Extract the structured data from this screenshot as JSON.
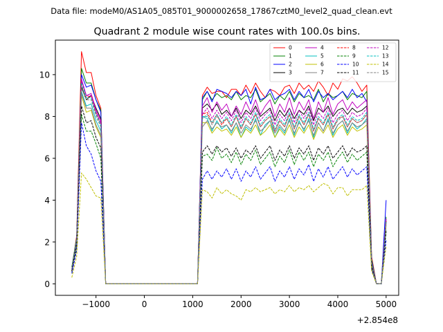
{
  "chart_data": {
    "type": "line",
    "suptitle": "Data file: modeM0/AS1A05_085T01_9000002658_17867cztM0_level2_quad_clean.evt",
    "title": "Quadrant 2 module wise count rates with 100.0s bins.",
    "xlabel": "",
    "ylabel": "",
    "x_offset_label": "+2.854e8",
    "xlim": [
      -1840,
      5260
    ],
    "ylim": [
      -0.55,
      11.65
    ],
    "xticks": [
      -1000,
      0,
      1000,
      2000,
      3000,
      4000,
      5000
    ],
    "xtick_labels": [
      "−1000",
      "0",
      "1000",
      "2000",
      "3000",
      "4000",
      "5000"
    ],
    "yticks": [
      0,
      2,
      4,
      6,
      8,
      10
    ],
    "ytick_labels": [
      "0",
      "2",
      "4",
      "6",
      "8",
      "10"
    ],
    "legend_position": "top-right",
    "x": [
      -1500,
      -1400,
      -1300,
      -1200,
      -1100,
      -1000,
      -900,
      -800,
      1100,
      1200,
      1300,
      1400,
      1500,
      1600,
      1700,
      1800,
      1900,
      2000,
      2100,
      2200,
      2300,
      2400,
      2500,
      2600,
      2700,
      2800,
      2900,
      3000,
      3100,
      3200,
      3300,
      3400,
      3500,
      3600,
      3700,
      3800,
      3900,
      4000,
      4100,
      4200,
      4300,
      4400,
      4500,
      4600,
      4700,
      4800,
      4900,
      5000
    ],
    "series": [
      {
        "name": "0",
        "color": "#ff0000",
        "dash": "solid",
        "values": [
          0.7,
          2.3,
          11.1,
          10.1,
          10.1,
          9.0,
          8.4,
          0.0,
          0.0,
          9.0,
          9.4,
          9.1,
          9.2,
          9.2,
          8.9,
          9.3,
          9.3,
          9.0,
          9.5,
          9.1,
          9.6,
          9.2,
          8.9,
          9.3,
          9.2,
          9.0,
          9.4,
          9.5,
          9.1,
          9.6,
          9.3,
          9.5,
          9.2,
          9.7,
          9.4,
          9.0,
          9.6,
          9.3,
          9.8,
          9.7,
          9.9,
          9.6,
          9.2,
          9.5,
          1.3,
          0.0,
          0.0,
          3.0
        ]
      },
      {
        "name": "1",
        "color": "#008000",
        "dash": "solid",
        "values": [
          0.8,
          2.2,
          10.3,
          9.6,
          9.6,
          8.8,
          8.3,
          0.0,
          0.0,
          8.8,
          9.2,
          8.8,
          9.1,
          8.9,
          9.0,
          8.8,
          9.2,
          8.8,
          9.0,
          8.9,
          9.3,
          8.7,
          8.9,
          9.1,
          8.6,
          9.0,
          8.8,
          9.2,
          8.7,
          9.1,
          8.9,
          9.0,
          8.8,
          9.3,
          8.7,
          9.1,
          8.9,
          9.0,
          9.2,
          8.8,
          9.1,
          9.0,
          8.9,
          9.2,
          1.2,
          0.0,
          0.0,
          3.2
        ]
      },
      {
        "name": "2",
        "color": "#0000ff",
        "dash": "solid",
        "values": [
          0.7,
          2.1,
          10.0,
          9.4,
          9.5,
          8.8,
          8.2,
          0.0,
          0.0,
          8.9,
          9.2,
          8.7,
          9.3,
          9.2,
          9.1,
          8.9,
          9.2,
          9.0,
          9.3,
          8.6,
          9.4,
          8.8,
          8.9,
          9.3,
          8.8,
          9.0,
          9.1,
          9.3,
          8.8,
          9.2,
          8.9,
          9.3,
          8.7,
          9.2,
          8.9,
          9.1,
          8.8,
          9.0,
          9.2,
          8.9,
          9.3,
          8.9,
          9.1,
          8.7,
          1.1,
          0.0,
          0.0,
          4.0
        ]
      },
      {
        "name": "3",
        "color": "#000000",
        "dash": "solid",
        "values": [
          0.6,
          2.0,
          9.4,
          8.8,
          9.0,
          8.4,
          7.9,
          0.0,
          0.0,
          8.4,
          8.6,
          8.3,
          8.6,
          8.1,
          8.3,
          8.0,
          8.4,
          7.9,
          8.3,
          8.1,
          8.5,
          8.0,
          8.2,
          8.4,
          7.8,
          8.3,
          8.0,
          8.4,
          7.9,
          8.3,
          8.1,
          8.5,
          7.8,
          8.4,
          8.2,
          8.5,
          8.0,
          8.3,
          8.4,
          8.1,
          8.4,
          8.2,
          8.3,
          8.5,
          1.0,
          0.0,
          0.0,
          3.0
        ]
      },
      {
        "name": "4",
        "color": "#bf00bf",
        "dash": "solid",
        "values": [
          0.6,
          2.0,
          9.8,
          9.0,
          9.1,
          8.3,
          7.8,
          0.0,
          0.0,
          8.5,
          8.9,
          8.2,
          8.7,
          8.3,
          8.6,
          8.0,
          8.5,
          8.1,
          8.7,
          8.2,
          8.8,
          8.1,
          8.5,
          8.8,
          8.0,
          8.6,
          8.2,
          8.9,
          8.1,
          8.7,
          8.3,
          8.8,
          7.9,
          8.7,
          8.2,
          8.9,
          8.1,
          8.6,
          8.8,
          8.3,
          8.7,
          8.4,
          8.6,
          8.8,
          1.0,
          0.0,
          0.0,
          3.1
        ]
      },
      {
        "name": "5",
        "color": "#00bfbf",
        "dash": "solid",
        "values": [
          0.6,
          1.9,
          9.2,
          8.5,
          8.6,
          7.8,
          7.3,
          0.0,
          0.0,
          8.0,
          7.9,
          7.3,
          7.8,
          7.4,
          7.6,
          7.2,
          7.7,
          7.0,
          7.5,
          7.3,
          7.9,
          7.1,
          7.6,
          7.8,
          7.0,
          7.5,
          7.2,
          7.9,
          7.1,
          7.8,
          7.3,
          7.9,
          7.0,
          7.7,
          7.3,
          7.9,
          7.1,
          7.6,
          7.8,
          7.2,
          7.7,
          7.4,
          7.6,
          7.9,
          0.9,
          0.0,
          0.0,
          2.9
        ]
      },
      {
        "name": "6",
        "color": "#bfbf00",
        "dash": "solid",
        "values": [
          0.6,
          1.9,
          9.0,
          8.2,
          8.3,
          7.5,
          7.0,
          0.0,
          0.0,
          7.7,
          7.7,
          7.2,
          7.5,
          7.3,
          7.4,
          7.1,
          7.5,
          7.0,
          7.4,
          7.2,
          7.6,
          7.1,
          7.3,
          7.6,
          7.0,
          7.4,
          7.1,
          7.6,
          7.0,
          7.5,
          7.2,
          7.6,
          6.9,
          7.5,
          7.2,
          7.6,
          7.0,
          7.4,
          7.6,
          7.1,
          7.5,
          7.3,
          7.4,
          7.6,
          0.9,
          0.0,
          0.0,
          2.8
        ]
      },
      {
        "name": "7",
        "color": "#808080",
        "dash": "solid",
        "values": [
          0.6,
          1.9,
          9.1,
          8.4,
          8.4,
          7.6,
          7.1,
          0.0,
          0.0,
          7.5,
          7.8,
          7.4,
          7.7,
          7.5,
          7.6,
          7.3,
          7.7,
          7.2,
          7.6,
          7.4,
          7.8,
          7.3,
          7.5,
          7.8,
          7.2,
          7.6,
          7.3,
          7.8,
          7.2,
          7.7,
          7.4,
          7.8,
          7.1,
          7.7,
          7.3,
          7.8,
          7.2,
          7.6,
          7.8,
          7.3,
          7.7,
          7.5,
          7.6,
          7.8,
          0.9,
          0.0,
          0.0,
          2.9
        ]
      },
      {
        "name": "8",
        "color": "#ff0000",
        "dash": "dashed",
        "values": [
          0.7,
          2.1,
          9.7,
          8.9,
          9.0,
          8.2,
          7.6,
          0.0,
          0.0,
          8.1,
          8.2,
          7.7,
          8.1,
          7.6,
          7.9,
          7.5,
          8.0,
          7.4,
          7.9,
          7.6,
          8.1,
          7.5,
          7.8,
          8.0,
          7.3,
          7.8,
          7.5,
          8.1,
          7.4,
          8.0,
          7.6,
          8.1,
          7.3,
          7.9,
          7.6,
          8.1,
          7.4,
          7.9,
          8.0,
          7.5,
          7.9,
          7.7,
          7.8,
          8.1,
          1.0,
          0.0,
          0.0,
          3.0
        ]
      },
      {
        "name": "9",
        "color": "#008000",
        "dash": "dashed",
        "values": [
          0.5,
          1.7,
          8.1,
          7.3,
          7.3,
          6.7,
          6.0,
          0.0,
          0.0,
          6.1,
          6.2,
          5.9,
          6.5,
          6.0,
          6.2,
          5.8,
          6.3,
          5.7,
          6.2,
          5.9,
          6.4,
          5.7,
          6.0,
          6.3,
          5.6,
          6.1,
          5.8,
          6.4,
          5.7,
          6.3,
          5.9,
          6.3,
          5.6,
          6.2,
          5.9,
          6.3,
          5.6,
          6.0,
          6.3,
          5.8,
          6.2,
          5.9,
          6.1,
          6.3,
          0.8,
          0.0,
          0.0,
          2.5
        ]
      },
      {
        "name": "10",
        "color": "#0000ff",
        "dash": "dashed",
        "values": [
          0.5,
          1.6,
          7.7,
          6.6,
          6.2,
          5.4,
          4.9,
          0.0,
          0.0,
          5.0,
          5.4,
          5.0,
          5.4,
          5.1,
          5.5,
          5.0,
          5.5,
          4.9,
          5.4,
          5.1,
          5.6,
          5.0,
          5.3,
          5.6,
          4.9,
          5.4,
          5.1,
          5.6,
          5.0,
          5.5,
          5.2,
          5.7,
          4.9,
          5.5,
          5.1,
          5.6,
          5.0,
          5.3,
          5.6,
          5.1,
          5.5,
          5.2,
          5.4,
          5.6,
          0.7,
          0.0,
          0.0,
          2.1
        ]
      },
      {
        "name": "11",
        "color": "#000000",
        "dash": "dashed",
        "values": [
          0.6,
          1.9,
          8.5,
          7.7,
          7.8,
          7.0,
          6.5,
          0.0,
          0.0,
          6.3,
          6.6,
          6.2,
          6.6,
          6.3,
          6.5,
          6.1,
          6.5,
          6.0,
          6.4,
          6.2,
          6.6,
          6.0,
          6.3,
          6.6,
          5.9,
          6.4,
          6.1,
          6.6,
          6.0,
          6.5,
          6.2,
          6.6,
          5.9,
          6.5,
          6.2,
          6.6,
          6.0,
          6.3,
          6.6,
          6.1,
          6.5,
          6.3,
          6.4,
          6.6,
          0.8,
          0.0,
          0.0,
          2.6
        ]
      },
      {
        "name": "12",
        "color": "#bf00bf",
        "dash": "dashed",
        "values": [
          0.7,
          2.1,
          9.7,
          9.0,
          9.0,
          8.2,
          7.7,
          0.0,
          0.0,
          8.1,
          8.4,
          7.9,
          8.3,
          7.9,
          8.2,
          7.8,
          8.3,
          7.7,
          8.2,
          7.9,
          8.4,
          7.8,
          8.1,
          8.3,
          7.6,
          8.1,
          7.8,
          8.4,
          7.7,
          8.3,
          7.9,
          8.4,
          7.6,
          8.2,
          7.9,
          8.4,
          7.7,
          8.1,
          8.3,
          7.8,
          8.2,
          8.0,
          8.1,
          8.4,
          1.0,
          0.0,
          0.0,
          3.1
        ]
      },
      {
        "name": "13",
        "color": "#00bfbf",
        "dash": "dashed",
        "values": [
          0.7,
          2.1,
          9.6,
          8.9,
          8.9,
          8.1,
          7.6,
          0.0,
          0.0,
          8.0,
          8.0,
          7.7,
          8.1,
          7.7,
          8.0,
          7.6,
          8.1,
          7.5,
          8.0,
          7.7,
          8.2,
          7.6,
          7.9,
          8.1,
          7.4,
          7.9,
          7.6,
          8.2,
          7.5,
          8.1,
          7.7,
          8.2,
          7.4,
          8.0,
          7.7,
          8.2,
          7.5,
          7.9,
          8.1,
          7.6,
          8.0,
          7.8,
          7.9,
          8.2,
          1.0,
          0.0,
          0.0,
          3.0
        ]
      },
      {
        "name": "14",
        "color": "#bfbf00",
        "dash": "dashed",
        "values": [
          0.3,
          1.3,
          5.3,
          5.0,
          4.6,
          4.2,
          4.1,
          0.0,
          0.0,
          4.5,
          4.4,
          4.1,
          4.6,
          4.3,
          4.5,
          4.3,
          4.2,
          4.0,
          4.5,
          4.4,
          4.6,
          4.4,
          4.5,
          4.6,
          4.3,
          4.5,
          4.4,
          4.7,
          4.4,
          4.6,
          4.5,
          4.7,
          4.4,
          4.6,
          4.8,
          4.7,
          4.3,
          4.6,
          4.6,
          4.2,
          4.5,
          4.5,
          4.5,
          4.7,
          0.6,
          0.0,
          0.0,
          1.8
        ]
      },
      {
        "name": "15",
        "color": "#808080",
        "dash": "dashed",
        "values": [
          0.7,
          2.0,
          9.5,
          8.8,
          8.8,
          8.0,
          7.5,
          0.0,
          0.0,
          7.9,
          8.1,
          7.6,
          8.0,
          7.7,
          7.9,
          7.5,
          8.0,
          7.4,
          7.9,
          7.6,
          8.1,
          7.5,
          7.8,
          8.0,
          7.3,
          7.8,
          7.5,
          8.1,
          7.4,
          8.0,
          7.6,
          8.1,
          7.3,
          7.9,
          7.6,
          8.1,
          7.4,
          7.8,
          8.0,
          7.5,
          7.9,
          7.7,
          7.8,
          8.1,
          1.0,
          0.0,
          0.0,
          3.0
        ]
      }
    ]
  }
}
